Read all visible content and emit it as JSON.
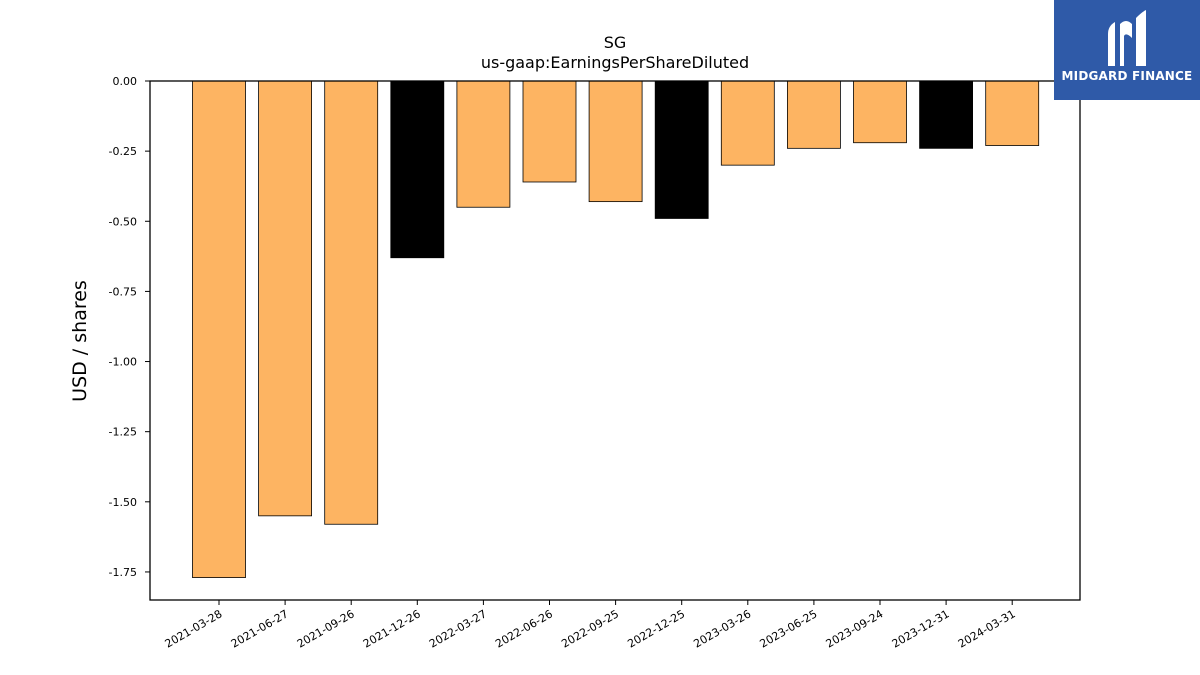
{
  "chart_data": {
    "type": "bar",
    "title": "SG",
    "subtitle": "us-gaap:EarningsPerShareDiluted",
    "ylabel": "USD / shares",
    "xlabel": "",
    "ylim": [
      -1.85,
      0.0
    ],
    "yticks": [
      "0.00",
      "-0.25",
      "-0.50",
      "-0.75",
      "-1.00",
      "-1.25",
      "-1.50",
      "-1.75"
    ],
    "ytick_values": [
      0.0,
      -0.25,
      -0.5,
      -0.75,
      -1.0,
      -1.25,
      -1.5,
      -1.75
    ],
    "categories": [
      "2021-03-28",
      "2021-06-27",
      "2021-09-26",
      "2021-12-26",
      "2022-03-27",
      "2022-06-26",
      "2022-09-25",
      "2022-12-25",
      "2023-03-26",
      "2023-06-25",
      "2023-09-24",
      "2023-12-31",
      "2024-03-31"
    ],
    "values": [
      -1.77,
      -1.55,
      -1.58,
      -0.63,
      -0.45,
      -0.36,
      -0.43,
      -0.49,
      -0.3,
      -0.24,
      -0.22,
      -0.24,
      -0.23
    ],
    "bar_colors": [
      "#fdb462",
      "#fdb462",
      "#fdb462",
      "#000000",
      "#fdb462",
      "#fdb462",
      "#fdb462",
      "#000000",
      "#fdb462",
      "#fdb462",
      "#fdb462",
      "#000000",
      "#fdb462"
    ],
    "grid": false
  },
  "logo": {
    "text": "MIDGARD FINANCE",
    "icon": "midgard-logo-icon",
    "bg_color": "#2f5aa8"
  }
}
